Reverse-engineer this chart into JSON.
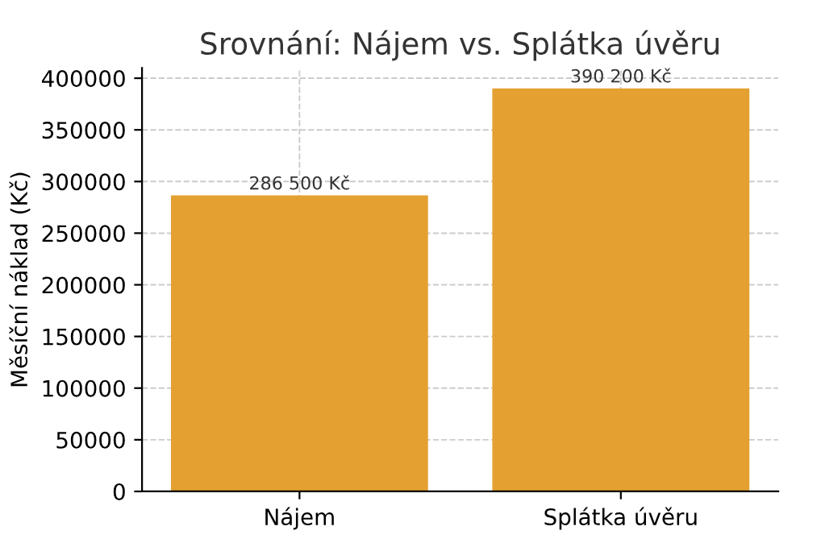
{
  "chart_data": {
    "type": "bar",
    "title": "Srovnání: Nájem vs. Splátka úvěru",
    "ylabel": "Měsíční náklad (Kč)",
    "categories": [
      "Nájem",
      "Splátka úvěru"
    ],
    "values": [
      286500,
      390200
    ],
    "color": "#e4a030",
    "value_labels": [
      "286 500 Kč",
      "390 200 Kč"
    ],
    "ylim": [
      0,
      410000
    ],
    "yticks": [
      0,
      50000,
      100000,
      150000,
      200000,
      250000,
      300000,
      350000,
      400000
    ],
    "grid": true
  }
}
